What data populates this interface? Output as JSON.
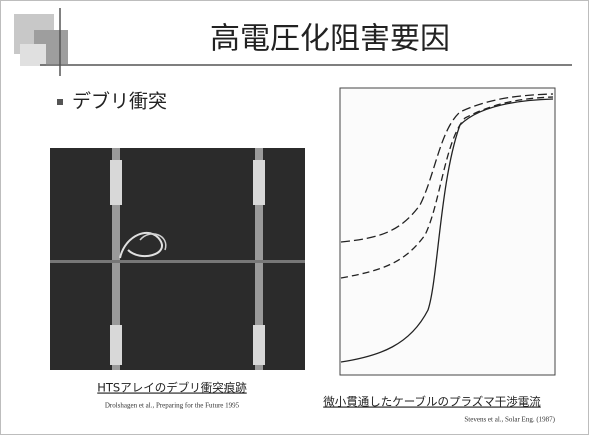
{
  "header": {
    "title": "高電圧化阻害要因"
  },
  "bullet": {
    "text": "デブリ衝突"
  },
  "left_figure": {
    "caption": "HTSアレイのデブリ衝突痕跡",
    "credit": "Drolshagen et al., Preparing for the Future 1995"
  },
  "right_figure": {
    "caption": "微小貫通したケーブルのプラズマ干渉電流",
    "credit": "Stevens et al., Solar Eng. (1987)"
  }
}
